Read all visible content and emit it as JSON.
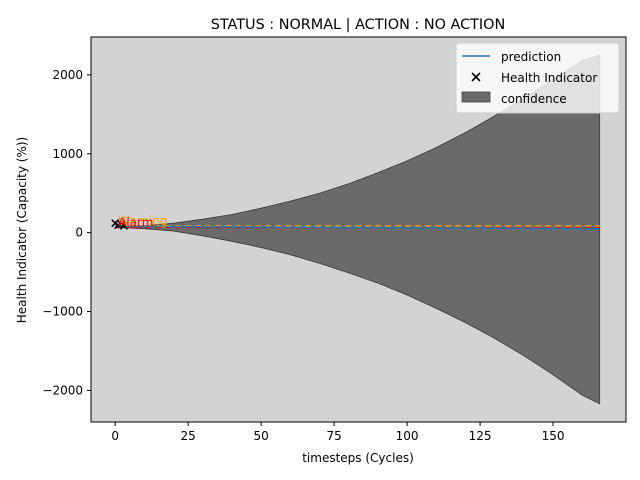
{
  "chart_data": {
    "type": "line",
    "title": "STATUS : NORMAL | ACTION : NO ACTION",
    "xlabel": "timesteps (Cycles)",
    "ylabel": "Health Indicator (Capacity (%))",
    "xlim": [
      -8.3,
      175
    ],
    "ylim": [
      -2400,
      2480
    ],
    "xticks": [
      0,
      25,
      50,
      75,
      100,
      125,
      150
    ],
    "xtick_labels": [
      "0",
      "25",
      "50",
      "75",
      "100",
      "125",
      "150"
    ],
    "yticks": [
      -2000,
      -1000,
      0,
      1000,
      2000
    ],
    "ytick_labels": [
      "−2000",
      "−1000",
      "0",
      "1000",
      "2000"
    ],
    "legend": {
      "placement": "top-right",
      "entries": [
        {
          "label": "prediction",
          "kind": "line"
        },
        {
          "label": "Health Indicator",
          "kind": "marker"
        },
        {
          "label": "confidence",
          "kind": "patch"
        }
      ]
    },
    "health_indicator": {
      "x": [
        0,
        1,
        2,
        3
      ],
      "y": [
        120,
        95,
        110,
        88
      ]
    },
    "prediction": {
      "x": [
        0,
        166
      ],
      "y": [
        80,
        50
      ]
    },
    "confidence": {
      "x": [
        3,
        10,
        20,
        30,
        40,
        50,
        60,
        70,
        80,
        90,
        100,
        110,
        120,
        130,
        140,
        150,
        160,
        166
      ],
      "upper": [
        80,
        90,
        120,
        170,
        230,
        310,
        400,
        500,
        620,
        760,
        910,
        1080,
        1270,
        1480,
        1700,
        1940,
        2180,
        2250
      ],
      "lower": [
        60,
        50,
        20,
        -40,
        -110,
        -190,
        -280,
        -390,
        -510,
        -640,
        -790,
        -960,
        -1140,
        -1340,
        -1560,
        -1800,
        -2060,
        -2170
      ]
    },
    "thresholds": [
      {
        "name": "Warning",
        "value": 85,
        "color": "#ffa500"
      },
      {
        "name": "Alarm",
        "value": 65,
        "color": "#ff0000"
      }
    ],
    "colors": {
      "prediction": "#1f77b4",
      "confidence": "#6a6a6a",
      "background": "#d3d3d3"
    }
  }
}
